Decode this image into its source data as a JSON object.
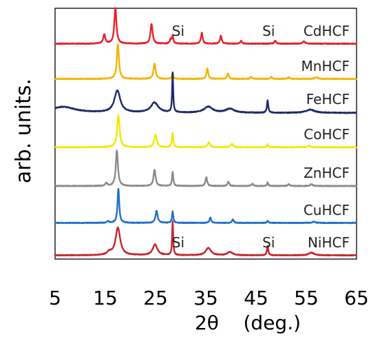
{
  "chart_data": {
    "type": "line",
    "title": "",
    "xlabel": "2θ    (deg.)",
    "ylabel": "arb. units.",
    "xlim": [
      5,
      65
    ],
    "xticks": [
      "5",
      "15",
      "25",
      "35",
      "45",
      "55",
      "65"
    ],
    "grid": false,
    "legend": "none",
    "series": [
      {
        "name": "CdHCF",
        "color": "#e8202a",
        "baseline": 0.05,
        "noise": 0.02,
        "peaks": [
          [
            14.8,
            0.25,
            0.25
          ],
          [
            17.0,
            1.0,
            0.25
          ],
          [
            24.2,
            0.55,
            0.25
          ],
          [
            28.0,
            0.12,
            0.2
          ],
          [
            28.4,
            0.22,
            0.15
          ],
          [
            34.2,
            0.3,
            0.2
          ],
          [
            38.0,
            0.22,
            0.2
          ],
          [
            42.0,
            0.08,
            0.2
          ],
          [
            48.8,
            0.08,
            0.2
          ],
          [
            54.5,
            0.06,
            0.3
          ]
        ]
      },
      {
        "name": "MnHCF",
        "color": "#f5b300",
        "baseline": 0.05,
        "noise": 0.02,
        "peaks": [
          [
            17.5,
            1.0,
            0.25
          ],
          [
            24.8,
            0.45,
            0.25
          ],
          [
            28.4,
            0.18,
            0.15
          ],
          [
            35.3,
            0.3,
            0.2
          ],
          [
            39.4,
            0.15,
            0.2
          ],
          [
            44.0,
            0.06,
            0.2
          ],
          [
            48.0,
            0.06,
            0.2
          ],
          [
            51.5,
            0.05,
            0.2
          ],
          [
            57.0,
            0.05,
            0.3
          ]
        ]
      },
      {
        "name": "FeHCF",
        "color": "#1c2a6b",
        "baseline": 0.02,
        "noise": 0.02,
        "peaks": [
          [
            6.5,
            0.15,
            3.0
          ],
          [
            17.4,
            0.55,
            0.7
          ],
          [
            24.8,
            0.25,
            0.9
          ],
          [
            28.4,
            1.0,
            0.12
          ],
          [
            35.5,
            0.15,
            1.0
          ],
          [
            39.8,
            0.1,
            1.0
          ],
          [
            47.3,
            0.32,
            0.15
          ],
          [
            55.8,
            0.08,
            1.0
          ]
        ]
      },
      {
        "name": "CoHCF",
        "color": "#f2e800",
        "baseline": 0.05,
        "noise": 0.02,
        "peaks": [
          [
            17.6,
            1.0,
            0.3
          ],
          [
            25.0,
            0.4,
            0.3
          ],
          [
            28.4,
            0.45,
            0.15
          ],
          [
            35.6,
            0.15,
            0.3
          ],
          [
            40.2,
            0.1,
            0.3
          ],
          [
            47.3,
            0.1,
            0.15
          ],
          [
            55.5,
            0.05,
            0.3
          ]
        ]
      },
      {
        "name": "ZnHCF",
        "color": "#8a8a8a",
        "baseline": 0.04,
        "noise": 0.02,
        "peaks": [
          [
            15.2,
            0.08,
            0.25
          ],
          [
            17.3,
            1.0,
            0.25
          ],
          [
            24.8,
            0.45,
            0.25
          ],
          [
            28.4,
            0.4,
            0.15
          ],
          [
            35.1,
            0.25,
            0.2
          ],
          [
            39.5,
            0.12,
            0.2
          ],
          [
            44.3,
            0.06,
            0.2
          ],
          [
            47.3,
            0.1,
            0.15
          ],
          [
            51.5,
            0.05,
            0.2
          ],
          [
            56.0,
            0.05,
            0.3
          ]
        ]
      },
      {
        "name": "CuHCF",
        "color": "#1f6fc9",
        "baseline": 0.05,
        "noise": 0.02,
        "peaks": [
          [
            15.5,
            0.05,
            0.25
          ],
          [
            17.6,
            1.0,
            0.2
          ],
          [
            25.2,
            0.35,
            0.25
          ],
          [
            28.4,
            0.33,
            0.15
          ],
          [
            35.9,
            0.15,
            0.2
          ],
          [
            40.4,
            0.1,
            0.2
          ],
          [
            47.3,
            0.06,
            0.15
          ],
          [
            56.5,
            0.04,
            0.3
          ]
        ]
      },
      {
        "name": "NiHCF",
        "color": "#c8242c",
        "baseline": 0.05,
        "noise": 0.02,
        "peaks": [
          [
            15.8,
            0.08,
            0.5
          ],
          [
            17.5,
            0.82,
            0.55
          ],
          [
            24.9,
            0.32,
            0.55
          ],
          [
            28.4,
            1.0,
            0.12
          ],
          [
            35.5,
            0.22,
            0.6
          ],
          [
            39.8,
            0.1,
            0.6
          ],
          [
            47.3,
            0.28,
            0.15
          ],
          [
            56.0,
            0.08,
            0.6
          ]
        ]
      }
    ],
    "annotations": [
      {
        "text": "Si",
        "series": "CdHCF",
        "x": 29.5
      },
      {
        "text": "Si",
        "series": "CdHCF",
        "x": 47.5
      },
      {
        "text": "Si",
        "series": "NiHCF",
        "x": 29.5
      },
      {
        "text": "Si",
        "series": "NiHCF",
        "x": 47.5
      }
    ]
  }
}
